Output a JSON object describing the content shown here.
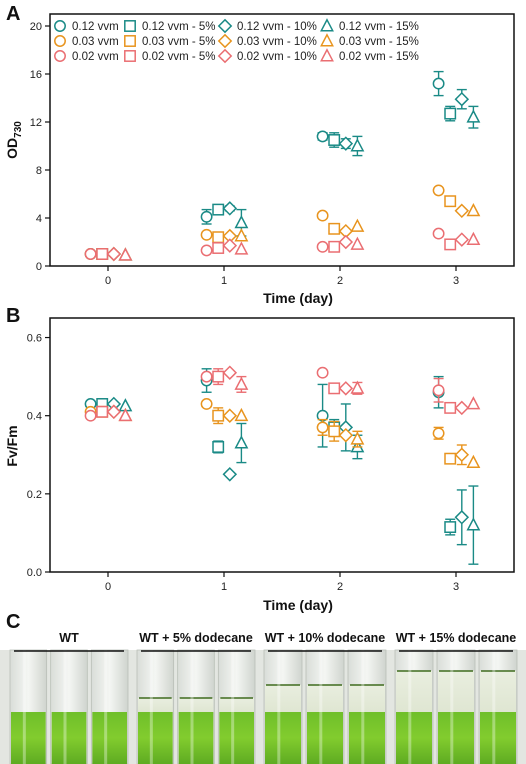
{
  "panels": {
    "a": "A",
    "b": "B",
    "c": "C"
  },
  "colors": {
    "teal": "#1a8a86",
    "orange": "#e8941e",
    "pink": "#ea6e72"
  },
  "chart_data": [
    {
      "type": "scatter",
      "panel": "A",
      "xlabel": "Time (day)",
      "ylabel_main": "OD",
      "ylabel_sub": "730",
      "xlim": [
        -0.5,
        3.5
      ],
      "ylim": [
        0,
        21
      ],
      "xticks": [
        0,
        1,
        2,
        3
      ],
      "yticks": [
        0,
        4,
        8,
        12,
        16,
        20
      ],
      "legend_position": "top-left",
      "series": [
        {
          "name": "0.12 vvm",
          "color": "teal",
          "marker": "circle",
          "offset": -0.15,
          "x": [
            0,
            1,
            2,
            3
          ],
          "y": [
            1.0,
            4.1,
            10.8,
            15.2
          ],
          "err": [
            0,
            0.6,
            0.3,
            1.0
          ]
        },
        {
          "name": "0.12 vvm - 5%",
          "color": "teal",
          "marker": "square",
          "offset": -0.05,
          "x": [
            0,
            1,
            2,
            3
          ],
          "y": [
            1.0,
            4.7,
            10.5,
            12.7
          ],
          "err": [
            0,
            0.2,
            0.6,
            0.6
          ]
        },
        {
          "name": "0.12 vvm - 10%",
          "color": "teal",
          "marker": "diamond",
          "offset": 0.05,
          "x": [
            0,
            1,
            2,
            3
          ],
          "y": [
            1.0,
            4.8,
            10.2,
            13.9
          ],
          "err": [
            0,
            0.2,
            0.4,
            0.8
          ]
        },
        {
          "name": "0.12 vvm - 15%",
          "color": "teal",
          "marker": "triangle",
          "offset": 0.15,
          "x": [
            0,
            1,
            2,
            3
          ],
          "y": [
            0.9,
            3.6,
            10.0,
            12.4
          ],
          "err": [
            0,
            1.1,
            0.8,
            0.9
          ]
        },
        {
          "name": "0.03 vvm",
          "color": "orange",
          "marker": "circle",
          "offset": -0.15,
          "x": [
            0,
            1,
            2,
            3
          ],
          "y": [
            1.0,
            2.6,
            4.2,
            6.3
          ],
          "err": [
            0,
            0,
            0,
            0
          ]
        },
        {
          "name": "0.03 vvm - 5%",
          "color": "orange",
          "marker": "square",
          "offset": -0.05,
          "x": [
            0,
            1,
            2,
            3
          ],
          "y": [
            1.0,
            2.4,
            3.1,
            5.4
          ],
          "err": [
            0,
            0,
            0,
            0
          ]
        },
        {
          "name": "0.03 vvm - 10%",
          "color": "orange",
          "marker": "diamond",
          "offset": 0.05,
          "x": [
            0,
            1,
            2,
            3
          ],
          "y": [
            1.0,
            2.5,
            2.9,
            4.6
          ],
          "err": [
            0,
            0,
            0,
            0
          ]
        },
        {
          "name": "0.03 vvm - 15%",
          "color": "orange",
          "marker": "triangle",
          "offset": 0.15,
          "x": [
            0,
            1,
            2,
            3
          ],
          "y": [
            0.9,
            2.5,
            3.3,
            4.6
          ],
          "err": [
            0,
            0,
            0,
            0
          ]
        },
        {
          "name": "0.02 vvm",
          "color": "pink",
          "marker": "circle",
          "offset": -0.15,
          "x": [
            0,
            1,
            2,
            3
          ],
          "y": [
            1.0,
            1.3,
            1.6,
            2.7
          ],
          "err": [
            0,
            0,
            0,
            0
          ]
        },
        {
          "name": "0.02 vvm - 5%",
          "color": "pink",
          "marker": "square",
          "offset": -0.05,
          "x": [
            0,
            1,
            2,
            3
          ],
          "y": [
            1.0,
            1.5,
            1.6,
            1.8
          ],
          "err": [
            0,
            0,
            0,
            0
          ]
        },
        {
          "name": "0.02 vvm - 10%",
          "color": "pink",
          "marker": "diamond",
          "offset": 0.05,
          "x": [
            0,
            1,
            2,
            3
          ],
          "y": [
            1.0,
            1.7,
            2.0,
            2.2
          ],
          "err": [
            0,
            0,
            0,
            0
          ]
        },
        {
          "name": "0.02 vvm - 15%",
          "color": "pink",
          "marker": "triangle",
          "offset": 0.15,
          "x": [
            0,
            1,
            2,
            3
          ],
          "y": [
            0.9,
            1.4,
            1.8,
            2.2
          ],
          "err": [
            0,
            0,
            0,
            0
          ]
        }
      ]
    },
    {
      "type": "scatter",
      "panel": "B",
      "xlabel": "Time (day)",
      "ylabel": "Fv/Fm",
      "xlim": [
        -0.5,
        3.5
      ],
      "ylim": [
        0,
        0.65
      ],
      "xticks": [
        0,
        1,
        2,
        3
      ],
      "yticks": [
        0.0,
        0.2,
        0.4,
        0.6
      ],
      "ytick_labels": [
        "0.0",
        "0.2",
        "0.4",
        "0.6"
      ],
      "series": [
        {
          "name": "0.12 vvm",
          "color": "teal",
          "marker": "circle",
          "offset": -0.15,
          "x": [
            0,
            1,
            2,
            3
          ],
          "y": [
            0.43,
            0.49,
            0.4,
            0.46
          ],
          "err": [
            0,
            0.03,
            0.08,
            0.04
          ]
        },
        {
          "name": "0.12 vvm - 5%",
          "color": "teal",
          "marker": "square",
          "offset": -0.05,
          "x": [
            0,
            1,
            2,
            3
          ],
          "y": [
            0.43,
            0.32,
            0.37,
            0.115
          ],
          "err": [
            0,
            0.015,
            0.02,
            0.02
          ]
        },
        {
          "name": "0.12 vvm - 10%",
          "color": "teal",
          "marker": "diamond",
          "offset": 0.05,
          "x": [
            0,
            1,
            2,
            3
          ],
          "y": [
            0.43,
            0.25,
            0.37,
            0.14
          ],
          "err": [
            0,
            0,
            0.06,
            0.07
          ]
        },
        {
          "name": "0.12 vvm - 15%",
          "color": "teal",
          "marker": "triangle",
          "offset": 0.15,
          "x": [
            0,
            1,
            2,
            3
          ],
          "y": [
            0.425,
            0.33,
            0.32,
            0.12
          ],
          "err": [
            0,
            0.05,
            0.03,
            0.1
          ]
        },
        {
          "name": "0.03 vvm",
          "color": "orange",
          "marker": "circle",
          "offset": -0.15,
          "x": [
            0,
            1,
            2,
            3
          ],
          "y": [
            0.41,
            0.43,
            0.37,
            0.355
          ],
          "err": [
            0,
            0,
            0.02,
            0.015
          ]
        },
        {
          "name": "0.03 vvm - 5%",
          "color": "orange",
          "marker": "square",
          "offset": -0.05,
          "x": [
            0,
            1,
            2,
            3
          ],
          "y": [
            0.41,
            0.4,
            0.36,
            0.29
          ],
          "err": [
            0,
            0.02,
            0.025,
            0
          ]
        },
        {
          "name": "0.03 vvm - 10%",
          "color": "orange",
          "marker": "diamond",
          "offset": 0.05,
          "x": [
            0,
            1,
            2,
            3
          ],
          "y": [
            0.41,
            0.4,
            0.35,
            0.3
          ],
          "err": [
            0,
            0,
            0,
            0.025
          ]
        },
        {
          "name": "0.03 vvm - 15%",
          "color": "orange",
          "marker": "triangle",
          "offset": 0.15,
          "x": [
            0,
            1,
            2,
            3
          ],
          "y": [
            0.4,
            0.4,
            0.34,
            0.28
          ],
          "err": [
            0,
            0,
            0.02,
            0
          ]
        },
        {
          "name": "0.02 vvm",
          "color": "pink",
          "marker": "circle",
          "offset": -0.15,
          "x": [
            0,
            1,
            2,
            3
          ],
          "y": [
            0.4,
            0.5,
            0.51,
            0.465
          ],
          "err": [
            0,
            0,
            0,
            0.03
          ]
        },
        {
          "name": "0.02 vvm - 5%",
          "color": "pink",
          "marker": "square",
          "offset": -0.05,
          "x": [
            0,
            1,
            2,
            3
          ],
          "y": [
            0.41,
            0.5,
            0.47,
            0.42
          ],
          "err": [
            0,
            0.02,
            0,
            0
          ]
        },
        {
          "name": "0.02 vvm - 10%",
          "color": "pink",
          "marker": "diamond",
          "offset": 0.05,
          "x": [
            0,
            1,
            2,
            3
          ],
          "y": [
            0.41,
            0.51,
            0.47,
            0.42
          ],
          "err": [
            0,
            0,
            0,
            0
          ]
        },
        {
          "name": "0.02 vvm - 15%",
          "color": "pink",
          "marker": "triangle",
          "offset": 0.15,
          "x": [
            0,
            1,
            2,
            3
          ],
          "y": [
            0.4,
            0.48,
            0.47,
            0.43
          ],
          "err": [
            0,
            0.02,
            0.015,
            0
          ]
        }
      ]
    }
  ],
  "photo": {
    "groups": [
      {
        "label": "WT",
        "dodecane_level": 0
      },
      {
        "label": "WT + 5% dodecane",
        "dodecane_level": 0.05
      },
      {
        "label": "WT + 10% dodecane",
        "dodecane_level": 0.1
      },
      {
        "label": "WT + 15% dodecane",
        "dodecane_level": 0.15
      }
    ]
  }
}
